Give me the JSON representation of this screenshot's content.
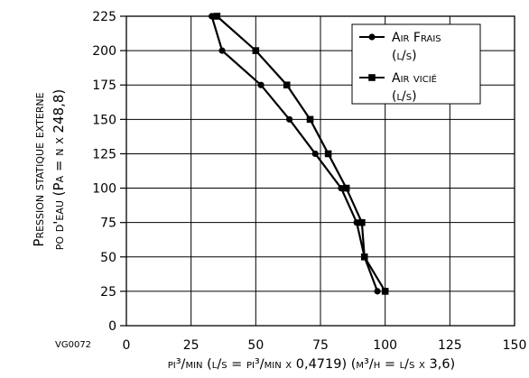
{
  "figure_code": "VG0072",
  "chart_data": {
    "type": "line",
    "xlabel": "pi³/min (l/s = pi³/min x 0,4719) (m³/h = l/s x 3,6)",
    "ylabel_line1": "Pression statique externe",
    "ylabel_line2": "po d'eau (Pa = n x 248,8)",
    "xlim": [
      0,
      150
    ],
    "ylim": [
      0,
      225
    ],
    "xticks": [
      0,
      25,
      50,
      75,
      100,
      125,
      150
    ],
    "yticks": [
      0,
      25,
      50,
      75,
      100,
      125,
      150,
      175,
      200,
      225
    ],
    "grid": true,
    "legend_position": "top-right",
    "series": [
      {
        "name_line1": "Air Frais",
        "name_line2": "(l/s)",
        "marker": "circle",
        "color": "#000000",
        "points": [
          {
            "x": 33,
            "y": 225
          },
          {
            "x": 37,
            "y": 200
          },
          {
            "x": 52,
            "y": 175
          },
          {
            "x": 63,
            "y": 150
          },
          {
            "x": 73,
            "y": 125
          },
          {
            "x": 83,
            "y": 100
          },
          {
            "x": 89,
            "y": 75
          },
          {
            "x": 92,
            "y": 50
          },
          {
            "x": 97,
            "y": 25
          }
        ]
      },
      {
        "name_line1": "Air vicié",
        "name_line2": "(l/s)",
        "marker": "square",
        "color": "#000000",
        "points": [
          {
            "x": 35,
            "y": 225
          },
          {
            "x": 50,
            "y": 200
          },
          {
            "x": 62,
            "y": 175
          },
          {
            "x": 71,
            "y": 150
          },
          {
            "x": 78,
            "y": 125
          },
          {
            "x": 85,
            "y": 100
          },
          {
            "x": 91,
            "y": 75
          },
          {
            "x": 92,
            "y": 50
          },
          {
            "x": 100,
            "y": 25
          }
        ]
      }
    ]
  }
}
